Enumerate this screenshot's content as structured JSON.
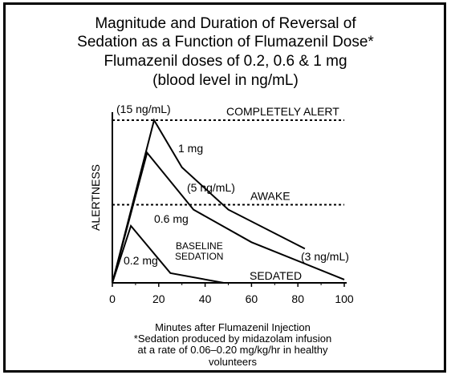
{
  "chart_data": {
    "type": "line",
    "title": "Magnitude and Duration of Reversal of Sedation as a Function of Flumazenil Dose*",
    "subtitle": "Flumazenil doses of 0.2, 0.6 & 1 mg (blood level in ng/mL)",
    "title_lines": [
      "Magnitude and Duration of Reversal of",
      "Sedation as a Function of Flumazenil Dose*",
      "Flumazenil doses of 0.2, 0.6 & 1 mg",
      "(blood level in ng/mL)"
    ],
    "xlabel": "Minutes after Flumazenil Injection",
    "ylabel": "ALERTNESS",
    "xlim": [
      0,
      100
    ],
    "x_ticks": [
      0,
      20,
      40,
      60,
      80,
      100
    ],
    "ylim": [
      0,
      100
    ],
    "reference_lines": [
      {
        "label": "COMPLETELY ALERT",
        "y": 100
      },
      {
        "label": "AWAKE",
        "y": 48
      }
    ],
    "series": [
      {
        "name": "1 mg",
        "x": [
          0,
          18,
          30,
          50,
          83
        ],
        "y": [
          0,
          100,
          71,
          45,
          21
        ]
      },
      {
        "name": "0.6 mg",
        "x": [
          0,
          15,
          35,
          60,
          100
        ],
        "y": [
          0,
          80,
          45,
          25,
          2
        ]
      },
      {
        "name": "0.2 mg",
        "x": [
          0,
          8,
          25,
          48
        ],
        "y": [
          0,
          35,
          6,
          0
        ]
      }
    ],
    "annotations": [
      {
        "text": "(15 ng/mL)",
        "x": 15,
        "y": 104
      },
      {
        "text": "(5 ng/mL)",
        "x": 34,
        "y": 58
      },
      {
        "text": "(3 ng/mL)",
        "x": 90,
        "y": 15
      },
      {
        "text": "BASELINE",
        "x": 38,
        "y": 22
      },
      {
        "text": "SEDATION",
        "x": 38,
        "y": 15
      },
      {
        "text": "SEDATED",
        "x": 80,
        "y": 3
      }
    ],
    "footnotes": [
      "*Sedation produced by midazolam infusion",
      "at a rate of 0.06–0.20 mg/kg/hr in healthy volunteers"
    ],
    "grid": false,
    "legend": "none (series labeled inline)"
  }
}
